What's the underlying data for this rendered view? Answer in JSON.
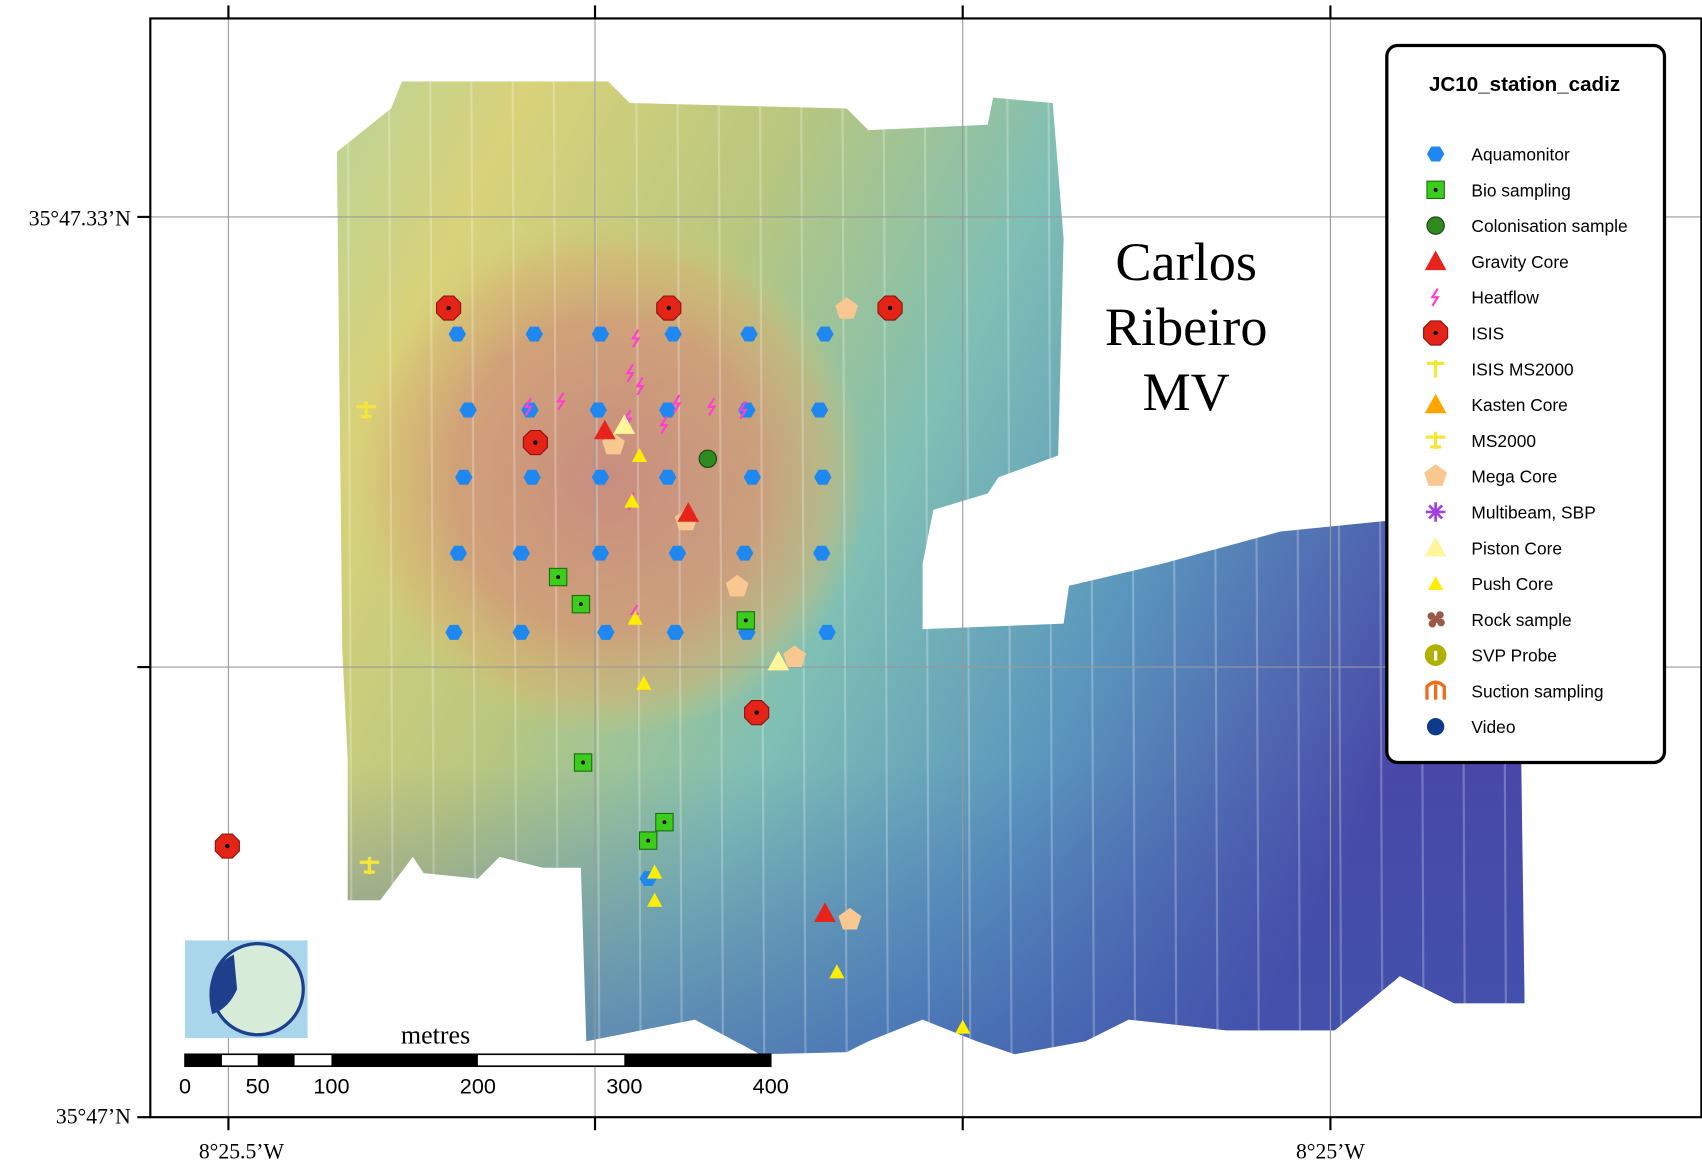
{
  "map": {
    "title": [
      "Carlos",
      "Ribeiro",
      "MV"
    ],
    "latitude_labels": [
      "35°47.33’N",
      "35°47’N"
    ],
    "longitude_labels": [
      "8°25.5’W",
      "8°25’W"
    ],
    "legend": {
      "title": "JC10_station_cadiz",
      "items": [
        "Aquamonitor",
        "Bio sampling",
        "Colonisation sample",
        "Gravity Core",
        "Heatflow",
        "ISIS",
        "ISIS MS2000",
        "Kasten Core",
        "MS2000",
        "Mega Core",
        "Multibeam, SBP",
        "Piston Core",
        "Push Core",
        "Rock sample",
        "SVP Probe",
        "Suction sampling",
        "Video"
      ]
    },
    "scale_bar": {
      "unit": "metres",
      "labels": [
        "0",
        "50",
        "100",
        "200",
        "300",
        "400"
      ]
    }
  }
}
